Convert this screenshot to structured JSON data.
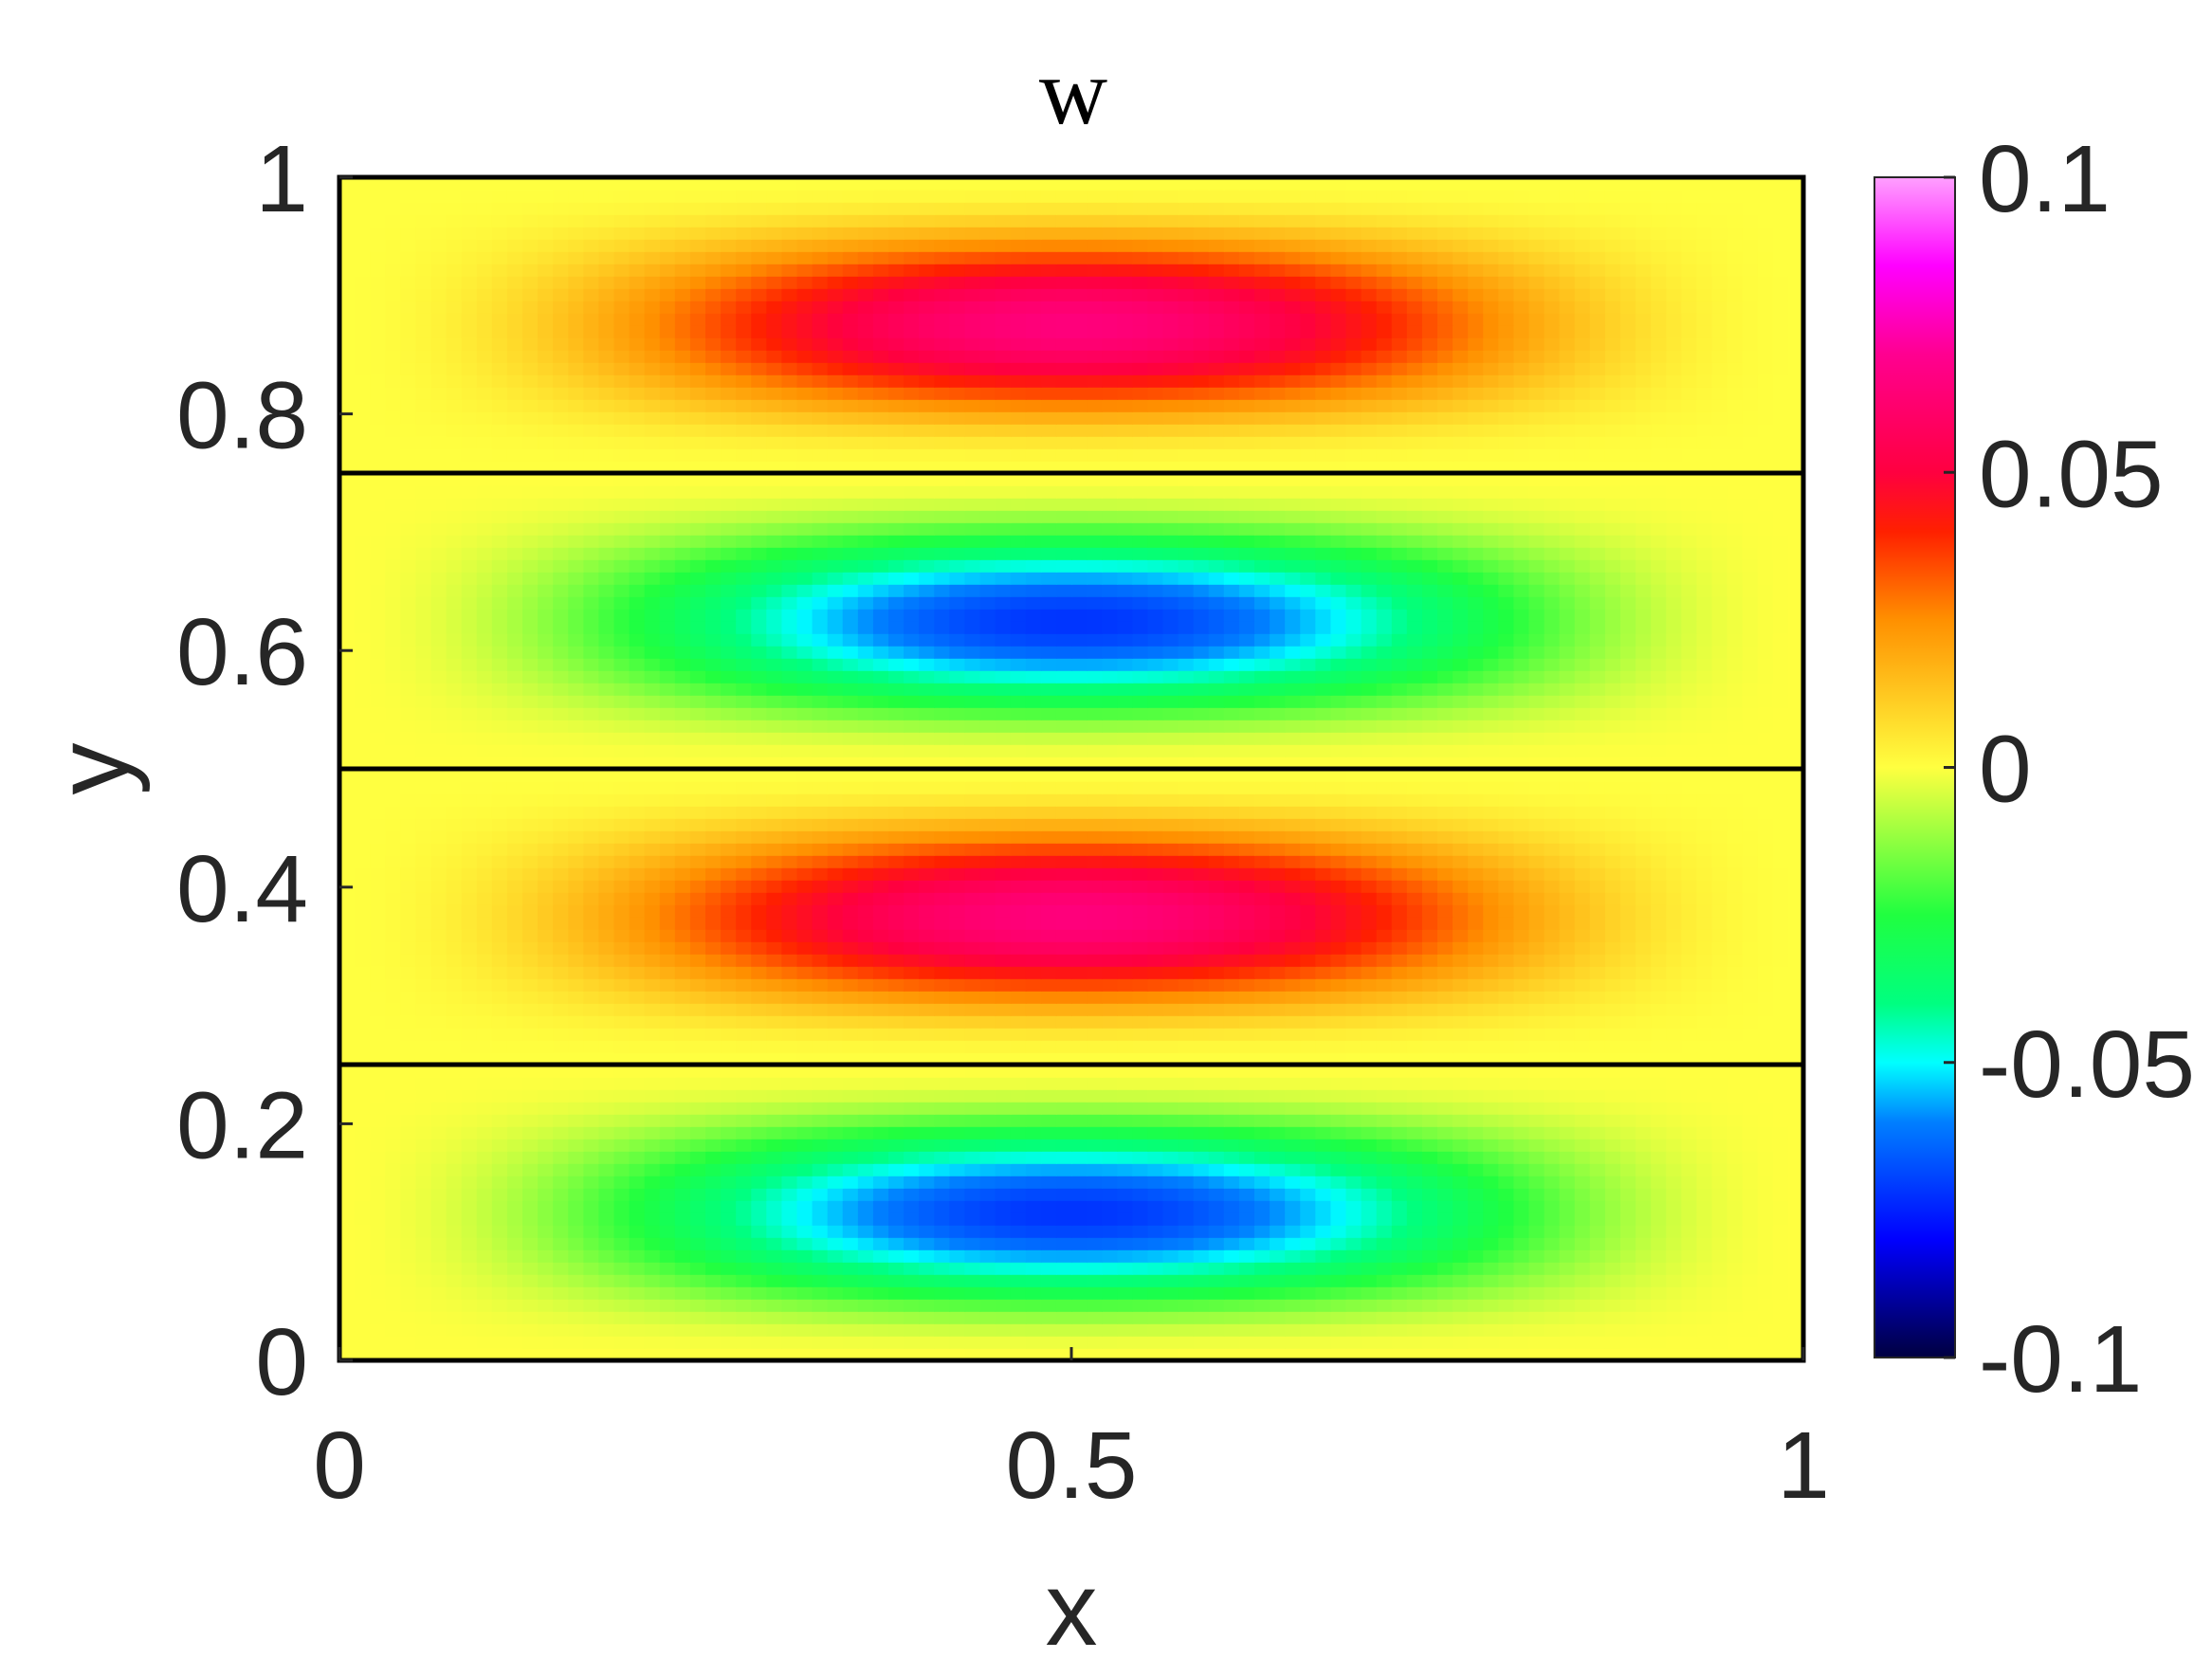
{
  "chart_data": {
    "type": "heatmap",
    "title": "w",
    "xlabel": "x",
    "ylabel": "y",
    "xlim": [
      0,
      1
    ],
    "ylim": [
      0,
      1
    ],
    "x_ticks": [
      {
        "value": 0,
        "label": "0"
      },
      {
        "value": 0.5,
        "label": "0.5"
      },
      {
        "value": 1,
        "label": "1"
      }
    ],
    "y_ticks": [
      {
        "value": 0,
        "label": "0"
      },
      {
        "value": 0.2,
        "label": "0.2"
      },
      {
        "value": 0.4,
        "label": "0.4"
      },
      {
        "value": 0.6,
        "label": "0.6"
      },
      {
        "value": 0.8,
        "label": "0.8"
      },
      {
        "value": 1,
        "label": "1"
      }
    ],
    "colorbar": {
      "range": [
        -0.1,
        0.1
      ],
      "ticks": [
        {
          "value": 0.1,
          "label": "0.1"
        },
        {
          "value": 0.05,
          "label": "0.05"
        },
        {
          "value": 0,
          "label": "0"
        },
        {
          "value": -0.05,
          "label": "-0.05"
        },
        {
          "value": -0.1,
          "label": "-0.1"
        }
      ],
      "colormap": [
        {
          "value": -0.1,
          "color": "#000040"
        },
        {
          "value": -0.08,
          "color": "#0000ff"
        },
        {
          "value": -0.06,
          "color": "#0080ff"
        },
        {
          "value": -0.05,
          "color": "#00ffff"
        },
        {
          "value": -0.04,
          "color": "#00ff80"
        },
        {
          "value": -0.025,
          "color": "#20ff40"
        },
        {
          "value": 0,
          "color": "#ffff40"
        },
        {
          "value": 0.025,
          "color": "#ff9000"
        },
        {
          "value": 0.04,
          "color": "#ff2000"
        },
        {
          "value": 0.05,
          "color": "#ff0040"
        },
        {
          "value": 0.07,
          "color": "#ff0090"
        },
        {
          "value": 0.085,
          "color": "#ff00ff"
        },
        {
          "value": 0.1,
          "color": "#ffa0ff"
        }
      ]
    },
    "bands": [
      {
        "y_range": [
          0,
          0.25
        ],
        "peak_value": -0.072
      },
      {
        "y_range": [
          0.25,
          0.5
        ],
        "peak_value": 0.065
      },
      {
        "y_range": [
          0.5,
          0.75
        ],
        "peak_value": -0.072
      },
      {
        "y_range": [
          0.75,
          1.0
        ],
        "peak_value": 0.065
      }
    ],
    "band_boundaries": [
      0.25,
      0.5,
      0.75
    ],
    "grid": false
  }
}
